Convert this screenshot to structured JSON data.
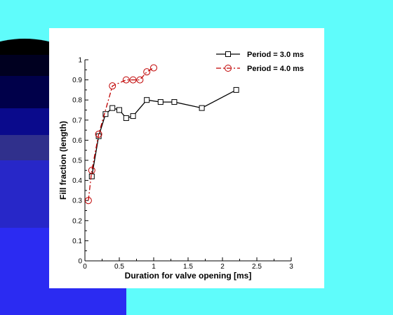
{
  "colors": {
    "background": "#5ffcfb",
    "deco_bands": [
      "#000000",
      "#000020",
      "#00004a",
      "#0a0a8c",
      "#30308c",
      "#2727c8",
      "#2b2bf2"
    ]
  },
  "chart_data": {
    "type": "line",
    "xlabel": "Duration for valve opening [ms]",
    "ylabel": "Fill fraction (length)",
    "xlim": [
      0,
      3
    ],
    "ylim": [
      0,
      1
    ],
    "xticks": [
      "0",
      "0.5",
      "1",
      "1.5",
      "2",
      "2.5",
      "3"
    ],
    "xtick_values": [
      0,
      0.5,
      1,
      1.5,
      2,
      2.5,
      3
    ],
    "yticks": [
      "0",
      "0.1",
      "0.2",
      "0.3",
      "0.4",
      "0.5",
      "0.6",
      "0.7",
      "0.8",
      "0.9",
      "1"
    ],
    "ytick_values": [
      0,
      0.1,
      0.2,
      0.3,
      0.4,
      0.5,
      0.6,
      0.7,
      0.8,
      0.9,
      1
    ],
    "grid": false,
    "legend_position": "top-right",
    "series": [
      {
        "name": "Period = 3.0 ms",
        "color": "#000000",
        "marker": "square",
        "line": "solid",
        "x": [
          0.1,
          0.2,
          0.3,
          0.4,
          0.5,
          0.6,
          0.7,
          0.9,
          1.1,
          1.3,
          1.7,
          2.2
        ],
        "y": [
          0.42,
          0.62,
          0.73,
          0.76,
          0.75,
          0.71,
          0.72,
          0.8,
          0.79,
          0.79,
          0.76,
          0.85
        ]
      },
      {
        "name": "Period = 4.0 ms",
        "color": "#c00000",
        "marker": "circle",
        "line": "dash-dot",
        "x": [
          0.05,
          0.1,
          0.2,
          0.4,
          0.6,
          0.7,
          0.8,
          0.9,
          1.0
        ],
        "y": [
          0.3,
          0.45,
          0.63,
          0.87,
          0.9,
          0.9,
          0.9,
          0.94,
          0.96
        ]
      }
    ]
  }
}
